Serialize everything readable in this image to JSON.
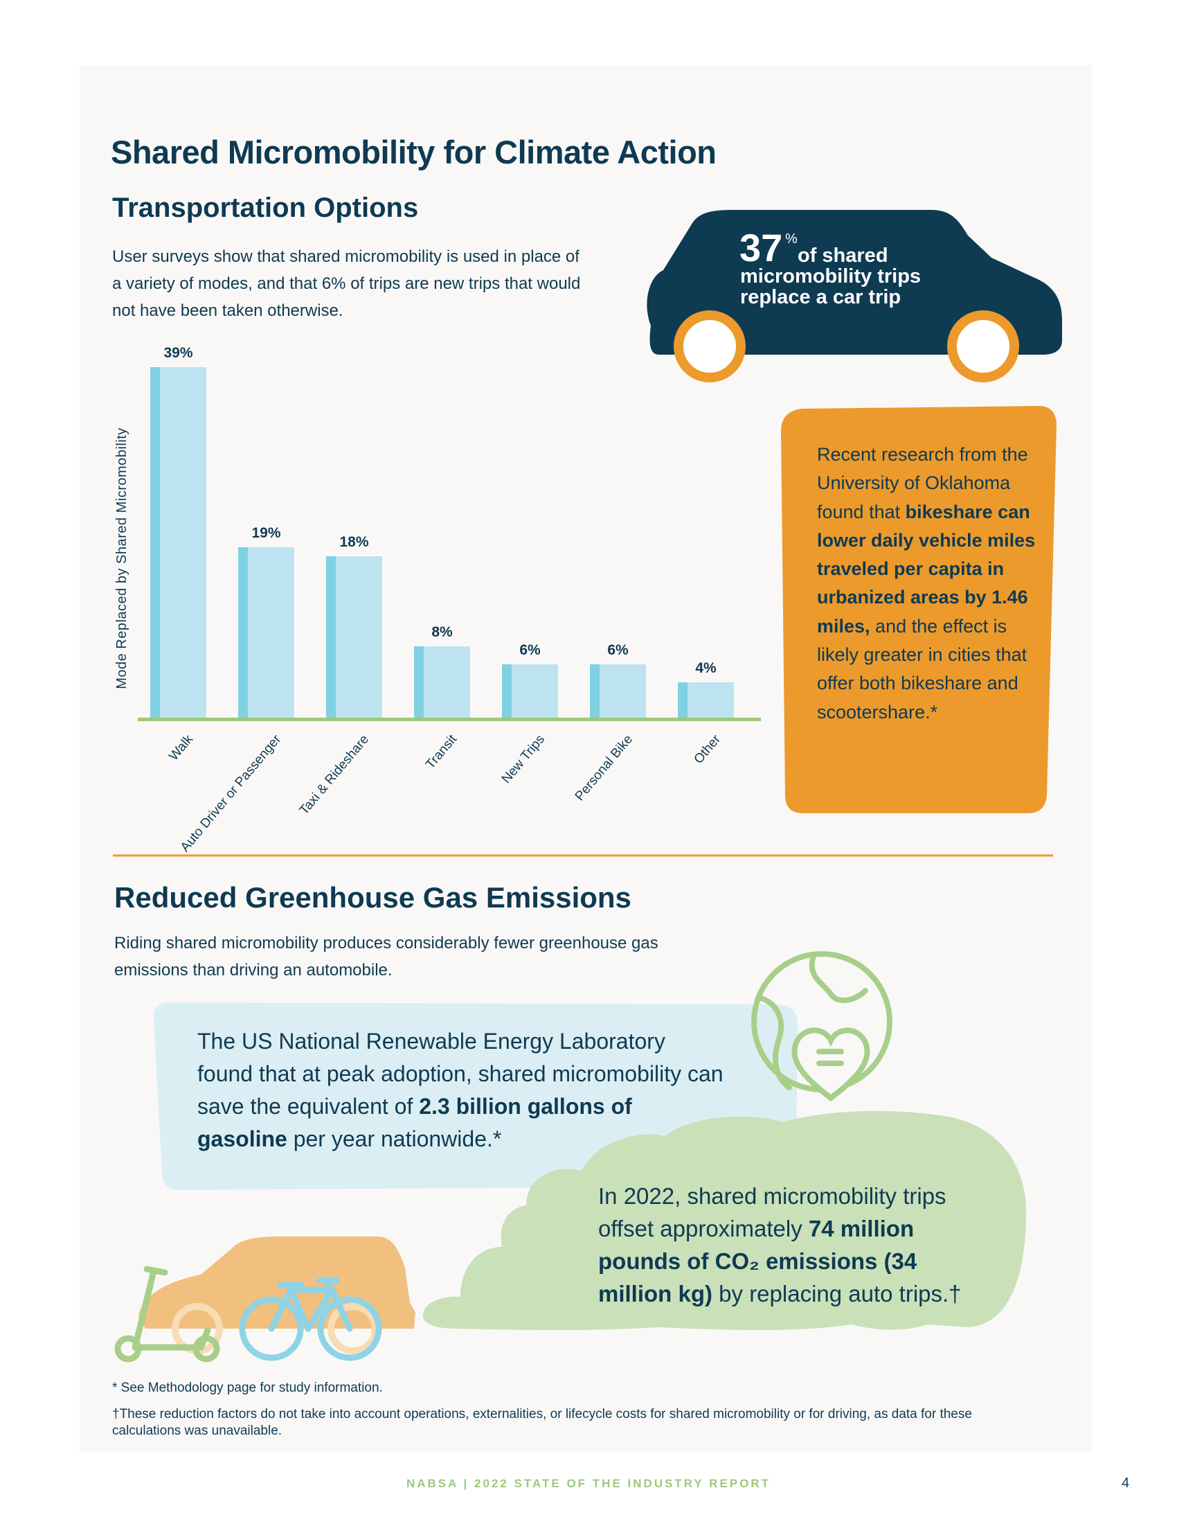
{
  "title": "Shared Micromobility for Climate Action",
  "transportation": {
    "heading": "Transportation Options",
    "intro": "User surveys show that shared micromobility is used in place of a variety of modes, and that 6% of trips are new trips that would not have been taken otherwise."
  },
  "chart_data": {
    "type": "bar",
    "y_label": "Mode Replaced by Shared Micromobility",
    "categories": [
      "Walk",
      "Auto Driver or Passenger",
      "Taxi & Rideshare",
      "Transit",
      "New Trips",
      "Personal Bike",
      "Other"
    ],
    "values": [
      39,
      19,
      18,
      8,
      6,
      6,
      4
    ],
    "value_labels": [
      "39%",
      "19%",
      "18%",
      "8%",
      "6%",
      "6%",
      "4%"
    ],
    "color": "#bde3f1",
    "accent_color": "#7fd0e3",
    "baseline_color": "#9cc97a"
  },
  "car_stat": {
    "number": "37",
    "unit": "%",
    "text": "of shared micromobility trips replace a car trip"
  },
  "research": {
    "parts": [
      {
        "text": "Recent research from the University of Oklahoma found that ",
        "bold": false
      },
      {
        "text": "bikeshare can lower daily vehicle miles traveled per capita in urbanized areas by 1.46 miles,",
        "bold": true
      },
      {
        "text": " and the effect is likely greater in cities that offer both bikeshare and scootershare.*",
        "bold": false
      }
    ]
  },
  "emissions": {
    "heading": "Reduced Greenhouse Gas Emissions",
    "intro": "Riding shared micromobility produces considerably fewer greenhouse gas emissions than driving an automobile."
  },
  "nrel": {
    "parts": [
      {
        "text": "The US National Renewable Energy Laboratory found that at peak adoption, shared micromobility can save the equivalent of ",
        "bold": false
      },
      {
        "text": "2.3 billion gallons of gasoline",
        "bold": true
      },
      {
        "text": " per year nationwide.*",
        "bold": false
      }
    ]
  },
  "co2": {
    "parts": [
      {
        "text": "In 2022, shared micromobility trips offset approximately ",
        "bold": false
      },
      {
        "text": "74 million pounds of CO₂ emissions (34 million kg)",
        "bold": true
      },
      {
        "text": " by replacing auto trips.†",
        "bold": false
      }
    ]
  },
  "footnotes": [
    "* See Methodology page for study information.",
    "†These reduction factors do not take into account operations, externalities, or lifecycle costs for shared micromobility or for driving, as data for these calculations was unavailable."
  ],
  "footer": "NABSA | 2022 STATE OF THE INDUSTRY REPORT",
  "page_number": "4"
}
